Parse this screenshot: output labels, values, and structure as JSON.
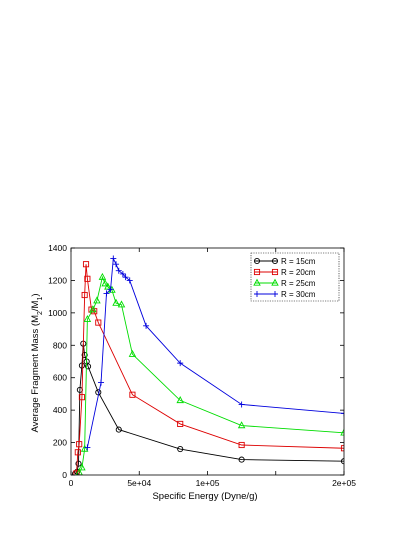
{
  "chart_data": {
    "type": "line",
    "title": "",
    "xlabel": "Specific Energy (Dyne/g)",
    "ylabel_main": "Average Fragment Mass (M",
    "ylabel_sub1": "2",
    "ylabel_mid": "/M",
    "ylabel_sub2": "1",
    "ylabel_end": ")",
    "xlim": [
      0,
      200000
    ],
    "ylim": [
      0,
      1400
    ],
    "xticks": [
      0,
      50000,
      100000,
      150000,
      200000
    ],
    "xtick_labels": [
      "0",
      "5e+04",
      "1e+05",
      "",
      "2e+05"
    ],
    "yticks": [
      0,
      200,
      400,
      600,
      800,
      1000,
      1200,
      1400
    ],
    "ytick_labels": [
      "0",
      "200",
      "400",
      "600",
      "800",
      "1000",
      "1200",
      "1400"
    ],
    "grid": false,
    "legend_position": "top-right",
    "series": [
      {
        "name": "R = 15cm",
        "color": "#000000",
        "marker": "circle",
        "points": [
          [
            3000,
            8
          ],
          [
            4500,
            20
          ],
          [
            5500,
            70
          ],
          [
            6500,
            525
          ],
          [
            8000,
            675
          ],
          [
            9000,
            810
          ],
          [
            10000,
            740
          ],
          [
            11500,
            700
          ],
          [
            12500,
            670
          ],
          [
            20000,
            510
          ],
          [
            35000,
            280
          ],
          [
            80000,
            160
          ],
          [
            125000,
            95
          ],
          [
            200000,
            85
          ]
        ]
      },
      {
        "name": "R = 20cm",
        "color": "#dd0000",
        "marker": "square",
        "points": [
          [
            4000,
            10
          ],
          [
            5000,
            140
          ],
          [
            6000,
            190
          ],
          [
            8000,
            480
          ],
          [
            10000,
            1110
          ],
          [
            11000,
            1300
          ],
          [
            12000,
            1210
          ],
          [
            15000,
            1020
          ],
          [
            17000,
            1010
          ],
          [
            20000,
            940
          ],
          [
            45000,
            495
          ],
          [
            80000,
            315
          ],
          [
            125000,
            185
          ],
          [
            200000,
            165
          ]
        ]
      },
      {
        "name": "R = 25cm",
        "color": "#00dd00",
        "marker": "triangle",
        "points": [
          [
            6000,
            15
          ],
          [
            8000,
            45
          ],
          [
            10000,
            160
          ],
          [
            12000,
            960
          ],
          [
            16000,
            1020
          ],
          [
            19000,
            1075
          ],
          [
            23000,
            1220
          ],
          [
            25000,
            1180
          ],
          [
            27000,
            1160
          ],
          [
            30000,
            1140
          ],
          [
            33000,
            1060
          ],
          [
            37000,
            1050
          ],
          [
            45000,
            745
          ],
          [
            80000,
            460
          ],
          [
            125000,
            305
          ],
          [
            200000,
            260
          ]
        ]
      },
      {
        "name": "R = 30cm",
        "color": "#0000dd",
        "marker": "plus",
        "points": [
          [
            12000,
            170
          ],
          [
            22000,
            570
          ],
          [
            26000,
            1120
          ],
          [
            29000,
            1145
          ],
          [
            31000,
            1335
          ],
          [
            33000,
            1300
          ],
          [
            35000,
            1260
          ],
          [
            38000,
            1240
          ],
          [
            40000,
            1220
          ],
          [
            43000,
            1200
          ],
          [
            55000,
            920
          ],
          [
            80000,
            690
          ],
          [
            125000,
            435
          ],
          [
            200000,
            380
          ]
        ]
      }
    ]
  }
}
